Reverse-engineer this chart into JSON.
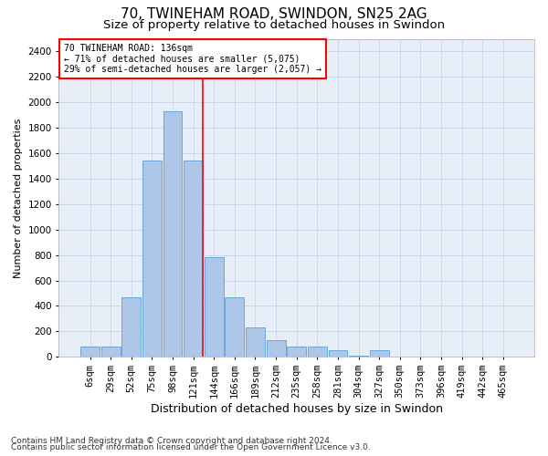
{
  "title1": "70, TWINEHAM ROAD, SWINDON, SN25 2AG",
  "title2": "Size of property relative to detached houses in Swindon",
  "xlabel": "Distribution of detached houses by size in Swindon",
  "ylabel": "Number of detached properties",
  "footnote1": "Contains HM Land Registry data © Crown copyright and database right 2024.",
  "footnote2": "Contains public sector information licensed under the Open Government Licence v3.0.",
  "bar_labels": [
    "6sqm",
    "29sqm",
    "52sqm",
    "75sqm",
    "98sqm",
    "121sqm",
    "144sqm",
    "166sqm",
    "189sqm",
    "212sqm",
    "235sqm",
    "258sqm",
    "281sqm",
    "304sqm",
    "327sqm",
    "350sqm",
    "373sqm",
    "396sqm",
    "419sqm",
    "442sqm",
    "465sqm"
  ],
  "bar_values": [
    80,
    80,
    470,
    1540,
    1930,
    1540,
    780,
    470,
    230,
    130,
    80,
    80,
    50,
    10,
    50,
    0,
    0,
    0,
    0,
    0,
    0
  ],
  "bar_color": "#aec6e8",
  "bar_edge_color": "#5a9fd4",
  "highlight_line_color": "red",
  "red_line_bar_index": 5.48,
  "annotation_text": "70 TWINEHAM ROAD: 136sqm\n← 71% of detached houses are smaller (5,075)\n29% of semi-detached houses are larger (2,057) →",
  "annotation_box_color": "red",
  "ylim": [
    0,
    2500
  ],
  "yticks": [
    0,
    200,
    400,
    600,
    800,
    1000,
    1200,
    1400,
    1600,
    1800,
    2000,
    2200,
    2400
  ],
  "grid_color": "#c8d4e8",
  "bg_color": "#e8eef8",
  "title1_fontsize": 11,
  "title2_fontsize": 9.5,
  "xlabel_fontsize": 9,
  "ylabel_fontsize": 8,
  "tick_fontsize": 7.5,
  "footnote_fontsize": 6.5
}
